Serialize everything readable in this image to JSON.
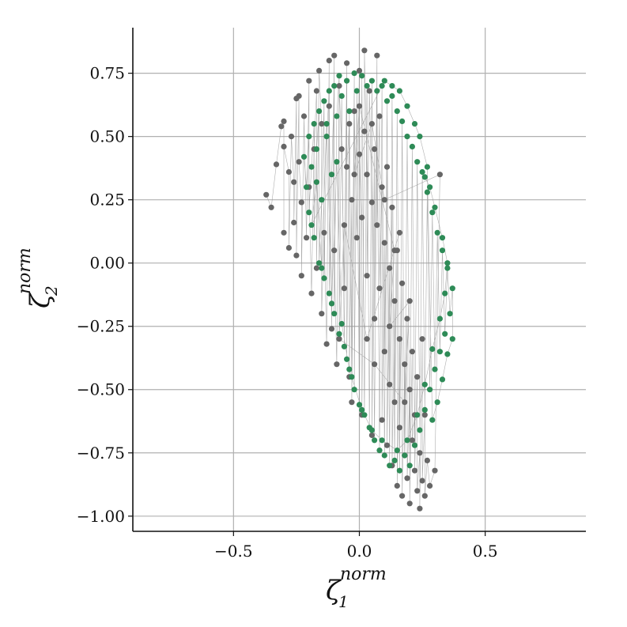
{
  "chart_data": {
    "type": "scatter",
    "title": "",
    "xlabel": {
      "symbol": "ζ",
      "sub": "1",
      "sup": "norm"
    },
    "ylabel": {
      "symbol": "ζ",
      "sub": "2",
      "sup": "norm"
    },
    "xlim": [
      -0.9,
      0.9
    ],
    "ylim": [
      -1.06,
      0.93
    ],
    "xticks": [
      -0.5,
      0.0,
      0.5
    ],
    "xtick_labels": [
      "−0.5",
      "0.0",
      "0.5"
    ],
    "yticks": [
      0.75,
      0.5,
      0.25,
      0.0,
      -0.25,
      -0.5,
      -0.75,
      -1.0
    ],
    "ytick_labels": [
      "0.75",
      "0.50",
      "0.25",
      "0.00",
      "−0.25",
      "−0.50",
      "−0.75",
      "−1.00"
    ],
    "grid": true,
    "series": [
      {
        "color": "#666666",
        "connected": true,
        "points": [
          [
            -0.37,
            0.27
          ],
          [
            -0.35,
            0.22
          ],
          [
            -0.33,
            0.39
          ],
          [
            -0.31,
            0.54
          ],
          [
            -0.3,
            0.56
          ],
          [
            -0.3,
            0.12
          ],
          [
            -0.3,
            0.46
          ],
          [
            -0.28,
            0.36
          ],
          [
            -0.28,
            0.06
          ],
          [
            -0.27,
            0.5
          ],
          [
            -0.26,
            0.32
          ],
          [
            -0.26,
            0.16
          ],
          [
            -0.25,
            0.65
          ],
          [
            -0.25,
            0.03
          ],
          [
            -0.24,
            0.66
          ],
          [
            -0.24,
            0.4
          ],
          [
            -0.23,
            0.24
          ],
          [
            -0.23,
            -0.05
          ],
          [
            -0.22,
            0.58
          ],
          [
            -0.21,
            0.1
          ],
          [
            -0.2,
            0.72
          ],
          [
            -0.2,
            0.3
          ],
          [
            -0.19,
            -0.12
          ],
          [
            -0.18,
            0.45
          ],
          [
            -0.17,
            0.68
          ],
          [
            -0.17,
            -0.02
          ],
          [
            -0.16,
            0.76
          ],
          [
            -0.15,
            0.55
          ],
          [
            -0.15,
            -0.2
          ],
          [
            -0.14,
            0.12
          ],
          [
            -0.13,
            -0.32
          ],
          [
            -0.12,
            0.8
          ],
          [
            -0.12,
            0.62
          ],
          [
            -0.11,
            -0.26
          ],
          [
            -0.1,
            0.82
          ],
          [
            -0.1,
            0.05
          ],
          [
            -0.09,
            -0.4
          ],
          [
            -0.08,
            0.7
          ],
          [
            -0.07,
            0.45
          ],
          [
            -0.06,
            -0.1
          ],
          [
            -0.05,
            0.79
          ],
          [
            -0.05,
            0.38
          ],
          [
            -0.04,
            0.55
          ],
          [
            -0.04,
            -0.45
          ],
          [
            -0.03,
            0.25
          ],
          [
            -0.03,
            -0.55
          ],
          [
            -0.02,
            0.6
          ],
          [
            -0.01,
            0.1
          ],
          [
            0.0,
            0.76
          ],
          [
            0.0,
            0.43
          ],
          [
            0.01,
            0.18
          ],
          [
            0.01,
            -0.6
          ],
          [
            0.02,
            0.52
          ],
          [
            0.02,
            0.84
          ],
          [
            0.03,
            0.35
          ],
          [
            0.03,
            -0.05
          ],
          [
            0.04,
            0.68
          ],
          [
            0.05,
            0.24
          ],
          [
            0.05,
            -0.68
          ],
          [
            0.06,
            0.45
          ],
          [
            0.06,
            -0.22
          ],
          [
            0.07,
            0.82
          ],
          [
            0.07,
            0.15
          ],
          [
            0.08,
            0.58
          ],
          [
            0.08,
            -0.1
          ],
          [
            0.09,
            0.3
          ],
          [
            0.09,
            -0.62
          ],
          [
            0.1,
            0.08
          ],
          [
            0.1,
            -0.35
          ],
          [
            0.11,
            0.38
          ],
          [
            0.11,
            -0.72
          ],
          [
            0.12,
            -0.02
          ],
          [
            0.12,
            -0.48
          ],
          [
            0.13,
            0.22
          ],
          [
            0.13,
            -0.8
          ],
          [
            0.14,
            -0.15
          ],
          [
            0.14,
            -0.55
          ],
          [
            0.15,
            0.05
          ],
          [
            0.15,
            -0.88
          ],
          [
            0.16,
            -0.3
          ],
          [
            0.16,
            -0.65
          ],
          [
            0.17,
            -0.08
          ],
          [
            0.17,
            -0.92
          ],
          [
            0.18,
            -0.4
          ],
          [
            0.18,
            -0.76
          ],
          [
            0.19,
            -0.22
          ],
          [
            0.19,
            -0.85
          ],
          [
            0.2,
            -0.5
          ],
          [
            0.2,
            -0.95
          ],
          [
            0.21,
            -0.35
          ],
          [
            0.21,
            -0.7
          ],
          [
            0.22,
            -0.6
          ],
          [
            0.22,
            -0.82
          ],
          [
            0.23,
            -0.45
          ],
          [
            0.23,
            -0.9
          ],
          [
            0.24,
            -0.75
          ],
          [
            0.24,
            -0.97
          ],
          [
            0.25,
            -0.3
          ],
          [
            0.25,
            -0.86
          ],
          [
            0.26,
            -0.6
          ],
          [
            0.26,
            -0.92
          ],
          [
            0.27,
            -0.78
          ],
          [
            0.28,
            -0.88
          ],
          [
            0.3,
            -0.82
          ],
          [
            0.32,
            0.35
          ],
          [
            0.1,
            0.25
          ],
          [
            0.05,
            0.55
          ],
          [
            -0.02,
            0.35
          ],
          [
            0.0,
            0.62
          ],
          [
            0.14,
            0.05
          ],
          [
            0.12,
            -0.25
          ],
          [
            0.2,
            -0.15
          ],
          [
            0.18,
            -0.55
          ],
          [
            0.06,
            -0.4
          ],
          [
            -0.08,
            -0.3
          ],
          [
            -0.06,
            0.15
          ],
          [
            0.03,
            -0.3
          ],
          [
            0.16,
            0.12
          ]
        ]
      },
      {
        "color": "#2e8b57",
        "connected": true,
        "points": [
          [
            -0.22,
            0.42
          ],
          [
            -0.21,
            0.3
          ],
          [
            -0.2,
            0.5
          ],
          [
            -0.2,
            0.2
          ],
          [
            -0.19,
            0.38
          ],
          [
            -0.18,
            0.55
          ],
          [
            -0.18,
            0.1
          ],
          [
            -0.17,
            0.45
          ],
          [
            -0.16,
            0.6
          ],
          [
            -0.16,
            0.0
          ],
          [
            -0.15,
            0.25
          ],
          [
            -0.14,
            0.64
          ],
          [
            -0.14,
            -0.06
          ],
          [
            -0.13,
            0.5
          ],
          [
            -0.12,
            0.68
          ],
          [
            -0.12,
            -0.12
          ],
          [
            -0.11,
            0.35
          ],
          [
            -0.1,
            0.7
          ],
          [
            -0.1,
            -0.2
          ],
          [
            -0.09,
            0.58
          ],
          [
            -0.08,
            0.74
          ],
          [
            -0.08,
            -0.28
          ],
          [
            -0.07,
            0.66
          ],
          [
            -0.06,
            -0.33
          ],
          [
            -0.05,
            0.72
          ],
          [
            -0.05,
            -0.38
          ],
          [
            -0.04,
            0.6
          ],
          [
            -0.03,
            -0.45
          ],
          [
            -0.02,
            0.75
          ],
          [
            -0.02,
            -0.5
          ],
          [
            -0.01,
            0.68
          ],
          [
            0.0,
            -0.56
          ],
          [
            0.01,
            0.74
          ],
          [
            0.02,
            -0.6
          ],
          [
            0.03,
            0.7
          ],
          [
            0.04,
            -0.65
          ],
          [
            0.05,
            0.72
          ],
          [
            0.06,
            -0.7
          ],
          [
            0.07,
            0.68
          ],
          [
            0.08,
            -0.74
          ],
          [
            0.09,
            0.7
          ],
          [
            0.1,
            -0.76
          ],
          [
            0.11,
            0.64
          ],
          [
            0.12,
            -0.8
          ],
          [
            0.13,
            0.66
          ],
          [
            0.14,
            -0.78
          ],
          [
            0.15,
            0.6
          ],
          [
            0.16,
            -0.82
          ],
          [
            0.17,
            0.56
          ],
          [
            0.18,
            -0.76
          ],
          [
            0.19,
            0.5
          ],
          [
            0.2,
            -0.8
          ],
          [
            0.21,
            0.46
          ],
          [
            0.22,
            -0.72
          ],
          [
            0.23,
            0.4
          ],
          [
            0.24,
            -0.66
          ],
          [
            0.25,
            0.36
          ],
          [
            0.26,
            -0.58
          ],
          [
            0.27,
            0.28
          ],
          [
            0.28,
            -0.5
          ],
          [
            0.29,
            0.2
          ],
          [
            0.3,
            -0.42
          ],
          [
            0.31,
            0.12
          ],
          [
            0.32,
            -0.35
          ],
          [
            0.33,
            0.05
          ],
          [
            0.34,
            -0.28
          ],
          [
            0.35,
            -0.02
          ],
          [
            0.36,
            -0.2
          ],
          [
            0.37,
            -0.1
          ],
          [
            0.37,
            -0.3
          ],
          [
            0.35,
            -0.36
          ],
          [
            0.33,
            -0.46
          ],
          [
            0.31,
            -0.55
          ],
          [
            0.29,
            -0.62
          ],
          [
            0.27,
            0.38
          ],
          [
            0.24,
            0.5
          ],
          [
            0.22,
            0.55
          ],
          [
            0.19,
            0.62
          ],
          [
            0.16,
            0.68
          ],
          [
            0.13,
            0.7
          ],
          [
            0.1,
            0.72
          ],
          [
            -0.19,
            0.15
          ],
          [
            -0.17,
            0.32
          ],
          [
            -0.15,
            -0.02
          ],
          [
            -0.13,
            0.55
          ],
          [
            -0.11,
            -0.16
          ],
          [
            -0.09,
            0.4
          ],
          [
            -0.07,
            -0.24
          ],
          [
            -0.04,
            -0.42
          ],
          [
            0.01,
            -0.58
          ],
          [
            0.05,
            -0.66
          ],
          [
            0.09,
            -0.7
          ],
          [
            0.15,
            -0.74
          ],
          [
            0.19,
            -0.7
          ],
          [
            0.23,
            -0.6
          ],
          [
            0.26,
            -0.48
          ],
          [
            0.29,
            -0.34
          ],
          [
            0.32,
            -0.22
          ],
          [
            0.34,
            -0.12
          ],
          [
            0.35,
            0.0
          ],
          [
            0.33,
            0.1
          ],
          [
            0.3,
            0.22
          ],
          [
            0.28,
            0.3
          ],
          [
            0.26,
            0.34
          ]
        ]
      }
    ]
  }
}
